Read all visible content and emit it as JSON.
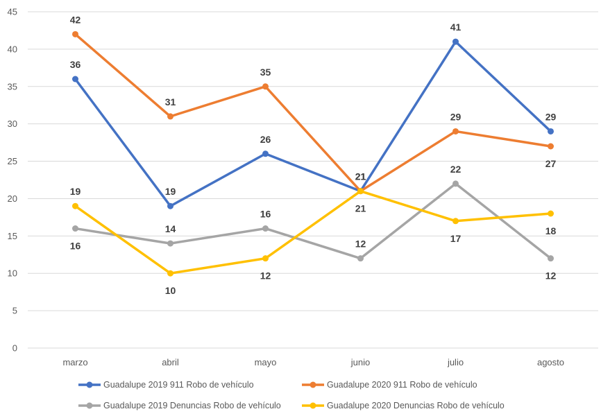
{
  "chart_data": {
    "type": "line",
    "title": "",
    "xlabel": "",
    "ylabel": "",
    "ylim": [
      0,
      45
    ],
    "y_ticks": [
      "0",
      "5",
      "10",
      "15",
      "20",
      "25",
      "30",
      "35",
      "40",
      "45"
    ],
    "grid": true,
    "legend_position": "bottom",
    "categories": [
      "marzo",
      "abril",
      "mayo",
      "junio",
      "julio",
      "agosto"
    ],
    "series": [
      {
        "name": "Guadalupe 2019 911 Robo de vehículo",
        "color": "#4472C4",
        "values": [
          36,
          19,
          26,
          21,
          41,
          29
        ],
        "data_labels": [
          "36",
          "19",
          "26",
          "21",
          "41",
          "29"
        ]
      },
      {
        "name": "Guadalupe 2020 911 Robo de vehículo",
        "color": "#ED7D31",
        "values": [
          42,
          31,
          35,
          21,
          29,
          27
        ],
        "data_labels": [
          "42",
          "31",
          "35",
          "21",
          "29",
          "27"
        ]
      },
      {
        "name": "Guadalupe 2019 Denuncias Robo de vehículo",
        "color": "#A5A5A5",
        "values": [
          16,
          14,
          16,
          12,
          22,
          12
        ],
        "data_labels": [
          "16",
          "14",
          "16",
          "12",
          "22",
          "12"
        ]
      },
      {
        "name": "Guadalupe 2020 Denuncias Robo de vehículo",
        "color": "#FFC000",
        "values": [
          19,
          10,
          12,
          21,
          17,
          18
        ],
        "data_labels": [
          "19",
          "10",
          "12",
          "21",
          "17",
          "18"
        ]
      }
    ]
  }
}
